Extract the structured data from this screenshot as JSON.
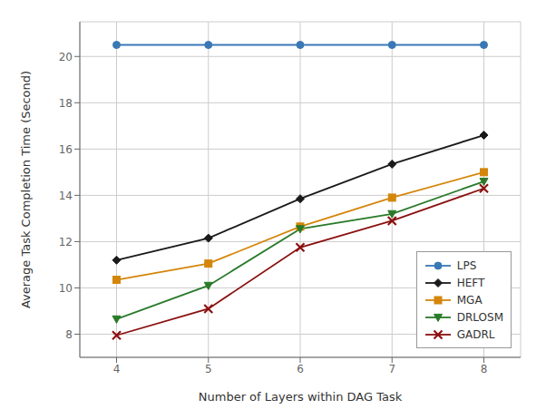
{
  "chart_data": {
    "type": "line",
    "x": [
      4,
      5,
      6,
      7,
      8
    ],
    "series": [
      {
        "name": "LPS",
        "color": "#3a78b5",
        "marker": "circle",
        "values": [
          20.5,
          20.5,
          20.5,
          20.5,
          20.5
        ]
      },
      {
        "name": "HEFT",
        "color": "#1a1a1a",
        "marker": "diamond",
        "values": [
          11.2,
          12.15,
          13.85,
          15.35,
          16.6
        ]
      },
      {
        "name": "MGA",
        "color": "#d4860a",
        "marker": "square",
        "values": [
          10.35,
          11.05,
          12.65,
          13.9,
          15.0
        ]
      },
      {
        "name": "DRLOSM",
        "color": "#2a7a2a",
        "marker": "triangle_down",
        "values": [
          8.65,
          10.1,
          12.55,
          13.2,
          14.6
        ]
      },
      {
        "name": "GADRL",
        "color": "#8b1010",
        "marker": "x",
        "values": [
          7.95,
          9.1,
          11.75,
          12.9,
          14.3
        ]
      }
    ],
    "xlabel": "Number of Layers within DAG Task",
    "ylabel": "Average Task Completion Time (Second)",
    "xlim": [
      3.6,
      8.4
    ],
    "ylim": [
      7.0,
      21.5
    ],
    "xticks": [
      4,
      5,
      6,
      7,
      8
    ],
    "yticks": [
      8,
      10,
      12,
      14,
      16,
      18,
      20
    ],
    "grid": true,
    "legend": "lower right"
  }
}
